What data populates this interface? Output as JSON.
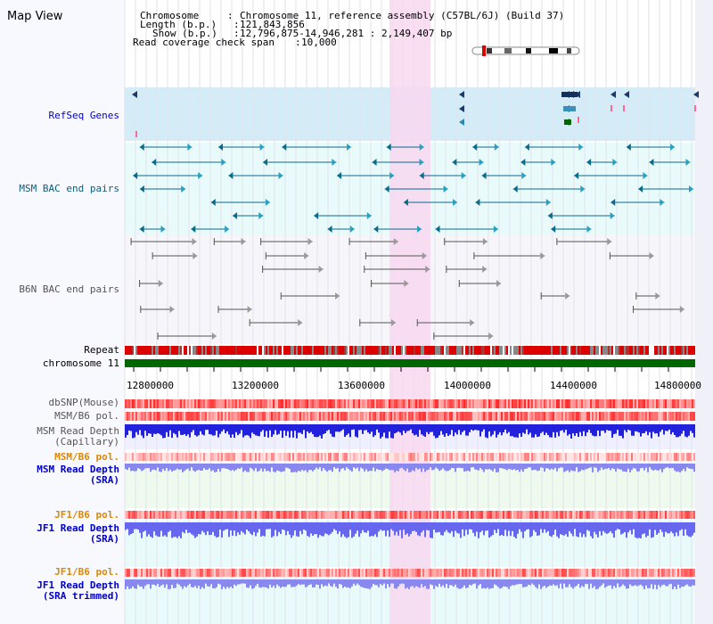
{
  "title": "Map View",
  "info": {
    "chromosome_label": "Chromosome",
    "chromosome_value": "Chromosome 11, reference assembly (C57BL/6J) (Build 37)",
    "length_label": "Length (b.p.)",
    "length_value": "121,843,856",
    "show_label": "Show (b.p.)",
    "show_value": "12,796,875-14,946,281 : 2,149,407 bp",
    "read_label": "Read coverage check span",
    "read_value": "10,000"
  },
  "tracks": {
    "refseq": "RefSeq Genes",
    "msm_bac": "MSM BAC end pairs",
    "b6n_bac": "B6N BAC end pairs",
    "repeat": "Repeat",
    "chromosome": "chromosome 11",
    "dbsnp": "dbSNP(Mouse)",
    "msm_b6_pol": "MSM/B6 pol.",
    "msm_depth_cap_1": "MSM Read Depth",
    "msm_depth_cap_2": "(Capillary)",
    "msm_b6_pol_2": "MSM/B6 pol.",
    "msm_depth_sra_1": "MSM Read Depth",
    "msm_depth_sra_2": "(SRA)",
    "jf1_b6_pol": "JF1/B6 pol.",
    "jf1_depth_sra_1": "JF1 Read Depth",
    "jf1_depth_sra_2": "(SRA)",
    "jf1_b6_pol_2": "JF1/B6 pol.",
    "jf1_depth_trim_1": "JF1 Read Depth",
    "jf1_depth_trim_2": "(SRA trimmed)"
  },
  "axis_ticks": [
    "12800000",
    "13200000",
    "13600000",
    "14000000",
    "14400000",
    "14800000"
  ],
  "colors": {
    "label_blue": "#0000cc",
    "label_teal": "#0a5f7a",
    "label_gray": "#555555",
    "label_orange": "#dd8800",
    "highlight": "#f8d8f0",
    "refseq_bg": "#d4ecf8",
    "msm_bg": "#e8fafa",
    "depth_blue": "#2222dd",
    "depth_light": "#8888ee",
    "chromosome_green": "#006600"
  }
}
